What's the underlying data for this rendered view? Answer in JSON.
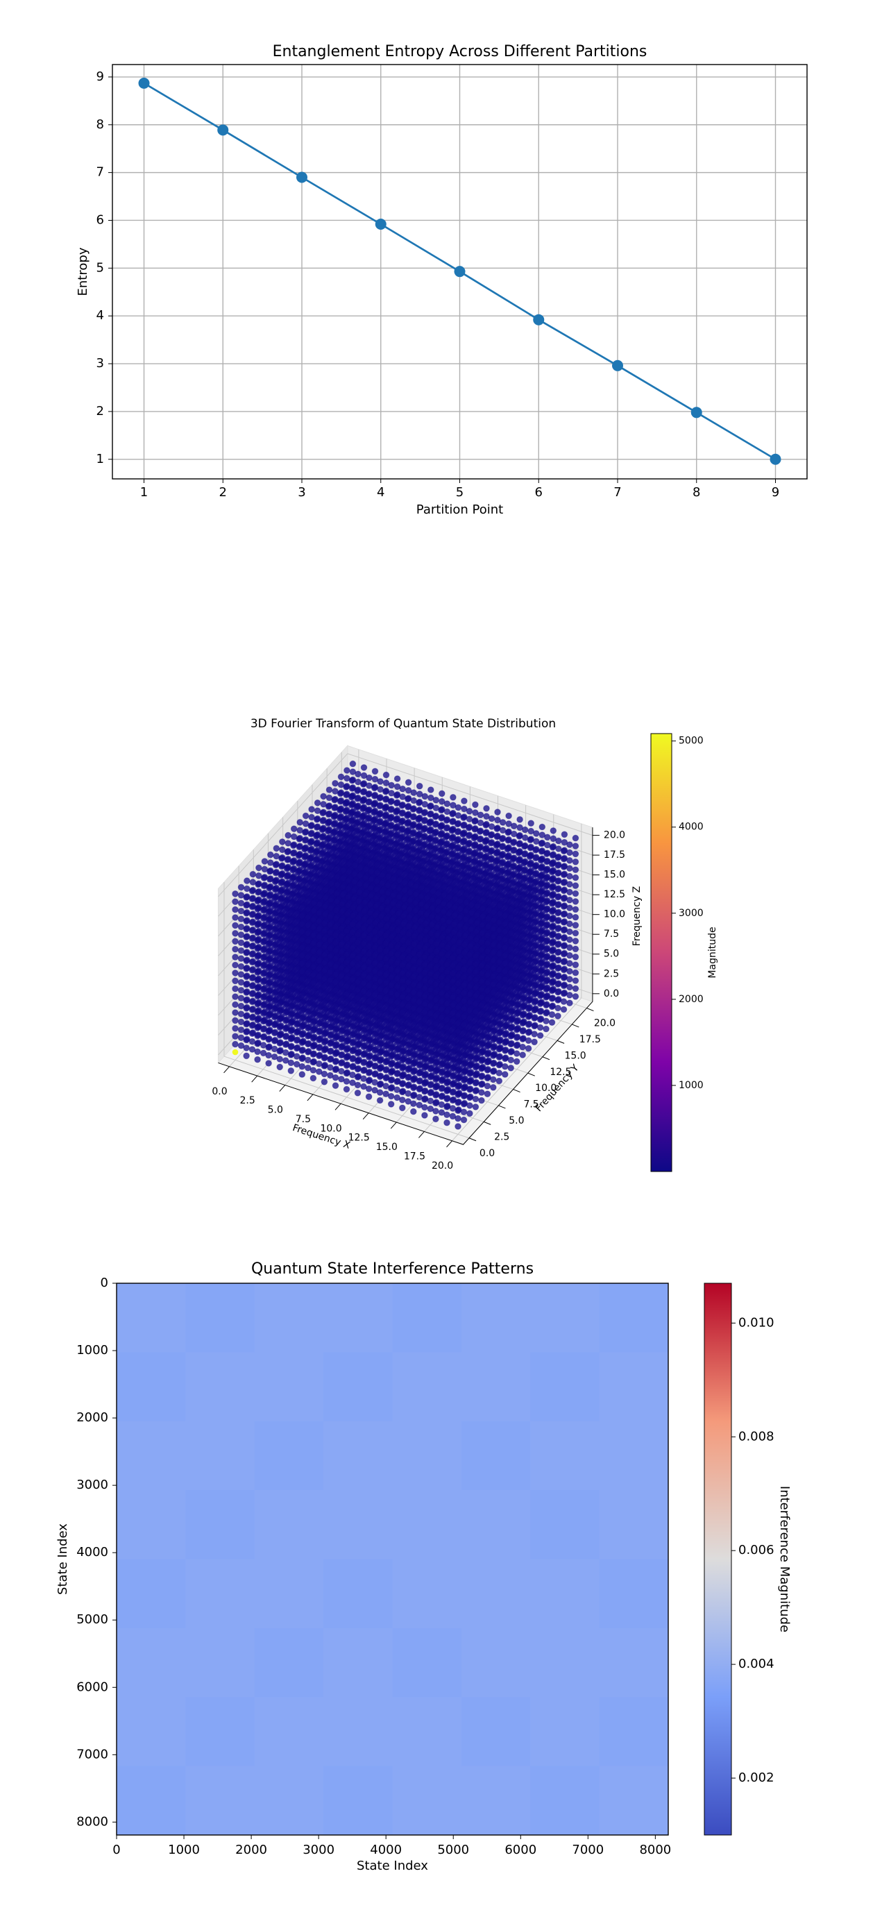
{
  "chart_data": [
    {
      "type": "line",
      "title": "Entanglement Entropy Across Different Partitions",
      "x_label": "Partition Point",
      "y_label": "Entropy",
      "x": [
        1,
        2,
        3,
        4,
        5,
        6,
        7,
        8,
        9
      ],
      "values": [
        8.87,
        7.89,
        6.9,
        5.92,
        4.93,
        3.92,
        2.96,
        1.98,
        1.0
      ],
      "color": "#1f77b4",
      "xlim": [
        0.6,
        9.4
      ],
      "ylim": [
        0.59,
        9.26
      ],
      "xticks": [
        1,
        2,
        3,
        4,
        5,
        6,
        7,
        8,
        9
      ],
      "yticks": [
        1,
        2,
        3,
        4,
        5,
        6,
        7,
        8,
        9
      ],
      "grid": true
    },
    {
      "type": "scatter3d",
      "title": "3D Fourier Transform of Quantum State Distribution",
      "x_label": "Frequency X",
      "y_label": "Frequency Y",
      "z_label": "Frequency Z",
      "colorbar_label": "Magnitude",
      "grid": [
        0,
        1,
        2,
        3,
        4,
        5,
        6,
        7,
        8,
        9,
        10,
        11,
        12,
        13,
        14,
        15,
        16,
        17,
        18,
        19,
        20
      ],
      "base_value": 60,
      "peak": {
        "x": 0,
        "y": 0,
        "z": 0,
        "value": 5086
      },
      "xlim": [
        0,
        20
      ],
      "ylim": [
        0,
        20
      ],
      "zlim": [
        0,
        20
      ],
      "xticks": [
        {
          "value": 0,
          "label": "0.0"
        },
        2.5,
        {
          "value": 5,
          "label": "5.0"
        },
        7.5,
        {
          "value": 10,
          "label": "10.0"
        },
        12.5,
        {
          "value": 15,
          "label": "15.0"
        },
        17.5,
        {
          "value": 20,
          "label": "20.0"
        }
      ],
      "yticks": [
        {
          "value": 0,
          "label": "0.0"
        },
        2.5,
        {
          "value": 5,
          "label": "5.0"
        },
        7.5,
        {
          "value": 10,
          "label": "10.0"
        },
        12.5,
        {
          "value": 15,
          "label": "15.0"
        },
        17.5,
        {
          "value": 20,
          "label": "20.0"
        }
      ],
      "zticks": [
        {
          "value": 0,
          "label": "0.0"
        },
        2.5,
        {
          "value": 5,
          "label": "5.0"
        },
        7.5,
        {
          "value": 10,
          "label": "10.0"
        },
        12.5,
        {
          "value": 15,
          "label": "15.0"
        },
        17.5,
        {
          "value": 20,
          "label": "20.0"
        }
      ],
      "colormap": "plasma",
      "clim": [
        0,
        5086
      ],
      "cticks": [
        1000,
        2000,
        3000,
        4000,
        5000
      ]
    },
    {
      "type": "heatmap",
      "title": "Quantum State Interference Patterns",
      "x_label": "State Index",
      "y_label": "State Index",
      "colorbar_label": "Interference Magnitude",
      "xlim": [
        0,
        8192
      ],
      "ylim": [
        8192,
        0
      ],
      "xticks": [
        0,
        1000,
        2000,
        3000,
        4000,
        5000,
        6000,
        7000,
        8000
      ],
      "yticks": [
        0,
        1000,
        2000,
        3000,
        4000,
        5000,
        6000,
        7000,
        8000
      ],
      "values": [
        [
          0.0038,
          0.0037,
          0.0038,
          0.0038,
          0.0037,
          0.0038,
          0.0038,
          0.0037
        ],
        [
          0.0037,
          0.0038,
          0.0038,
          0.0037,
          0.0038,
          0.0038,
          0.0037,
          0.0038
        ],
        [
          0.0038,
          0.0038,
          0.0037,
          0.0038,
          0.0038,
          0.0037,
          0.0038,
          0.0038
        ],
        [
          0.0038,
          0.0037,
          0.0038,
          0.0038,
          0.0038,
          0.0038,
          0.0037,
          0.0038
        ],
        [
          0.0037,
          0.0038,
          0.0038,
          0.0037,
          0.0038,
          0.0038,
          0.0038,
          0.0037
        ],
        [
          0.0038,
          0.0038,
          0.0037,
          0.0038,
          0.0037,
          0.0038,
          0.0038,
          0.0038
        ],
        [
          0.0038,
          0.0037,
          0.0038,
          0.0038,
          0.0038,
          0.0037,
          0.0038,
          0.0037
        ],
        [
          0.0037,
          0.0038,
          0.0038,
          0.0037,
          0.0038,
          0.0038,
          0.0037,
          0.0038
        ]
      ],
      "colormap": "coolwarm",
      "clim": [
        0.001,
        0.0107
      ],
      "cticks": [
        0.002,
        0.004,
        0.006,
        0.008,
        {
          "value": 0.01,
          "label": "0.010"
        }
      ]
    }
  ]
}
